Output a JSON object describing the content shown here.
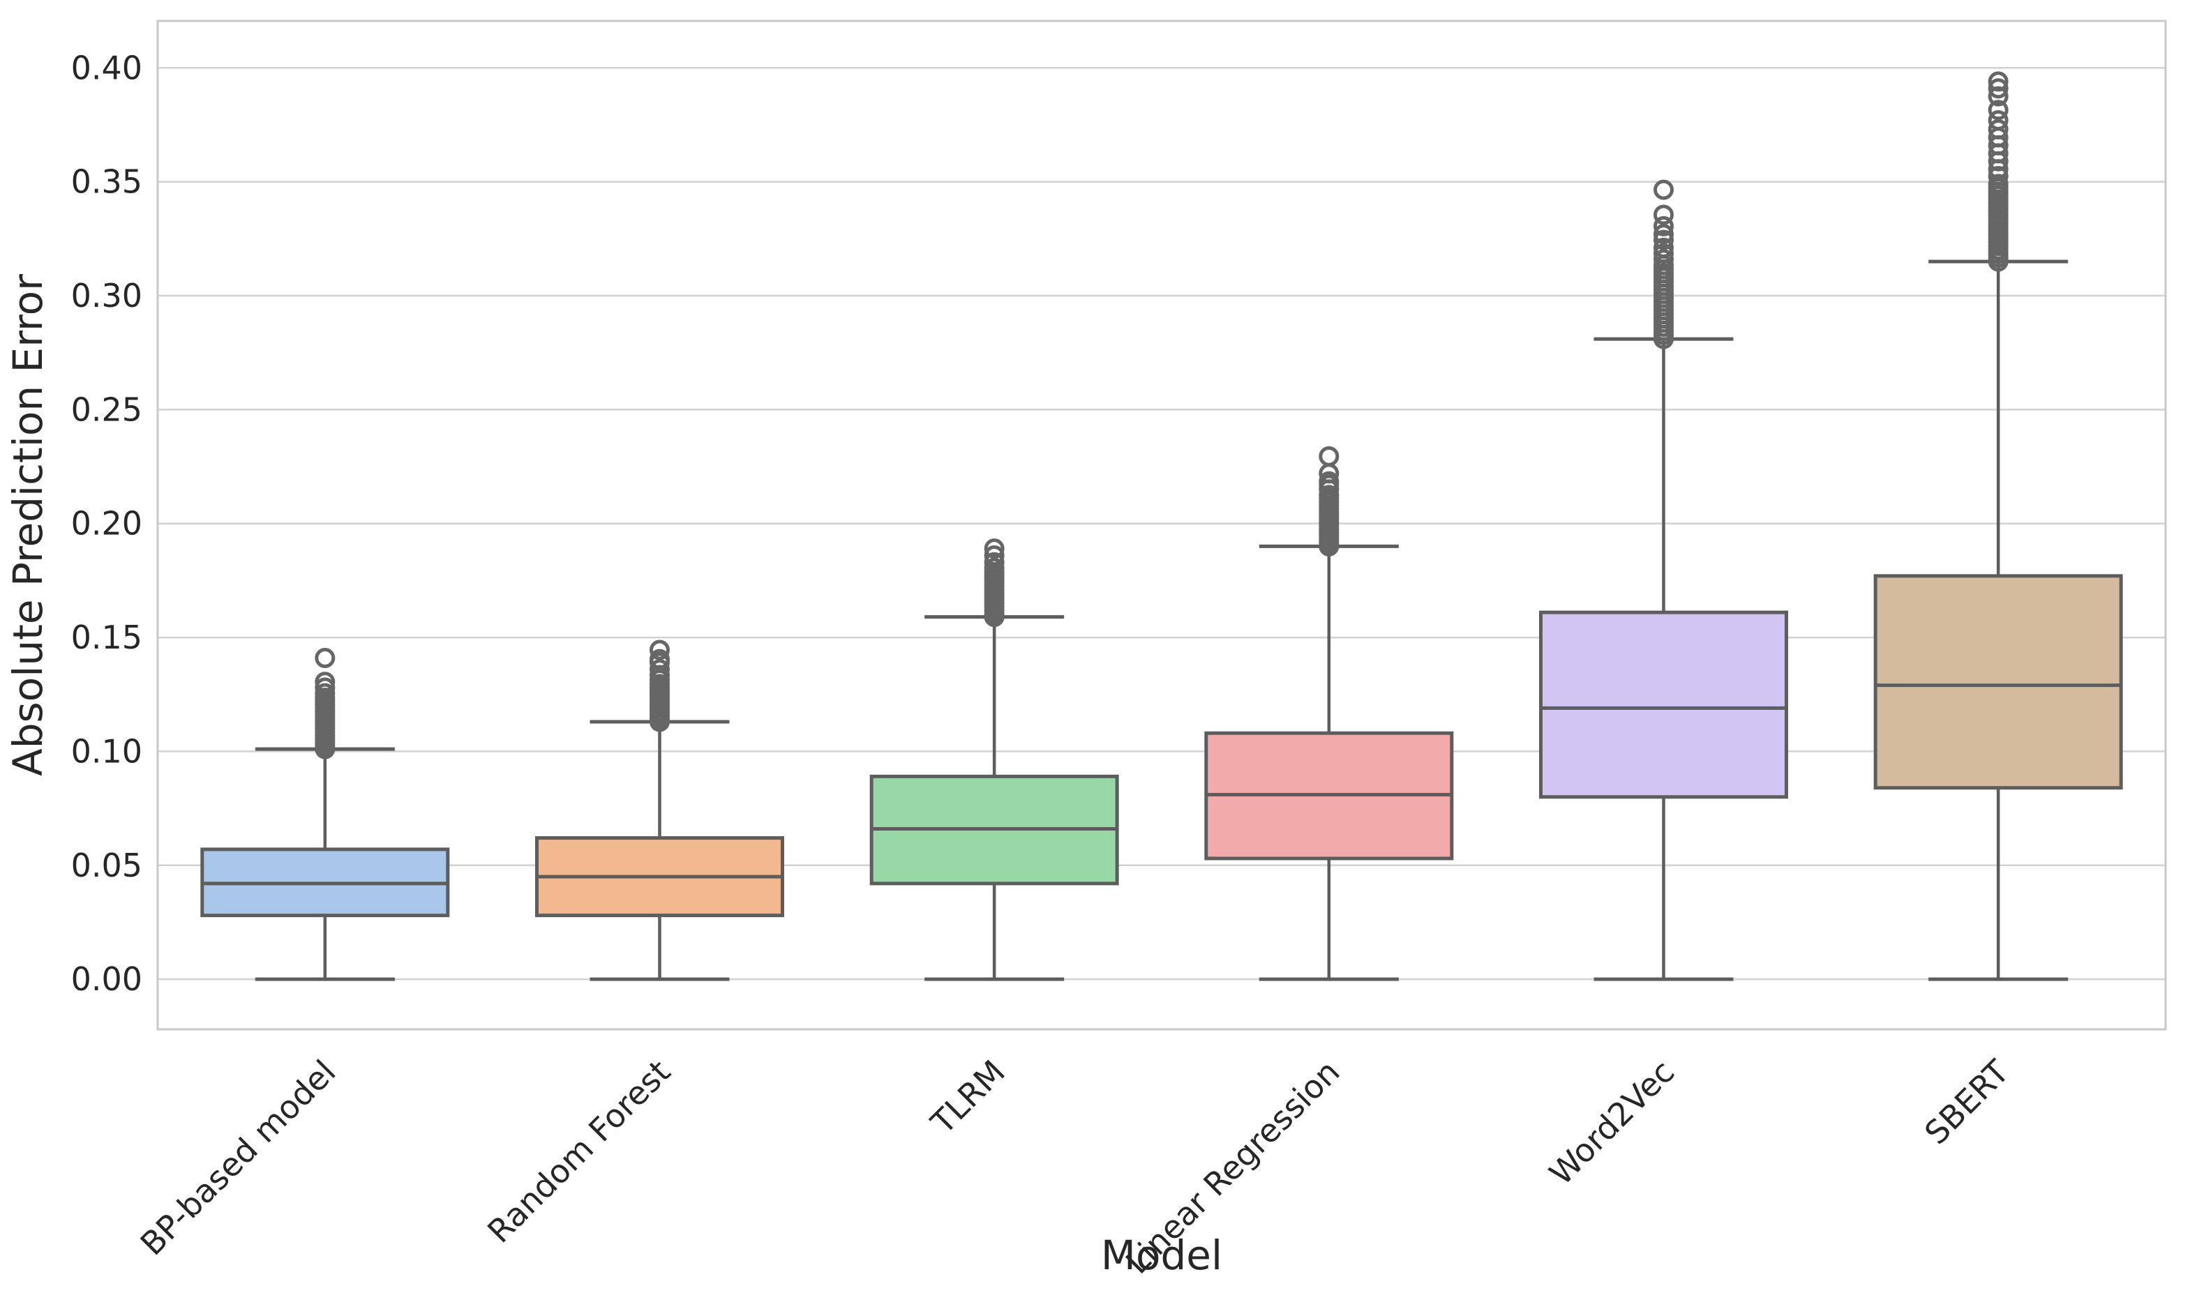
{
  "style": {
    "background": "#ffffff",
    "grid_color": "#d2d2d2",
    "spine_color": "#c8c8c8",
    "box_edge_color": "#5d5d5d",
    "flier_edge_color": "#666666",
    "text_color": "#262626"
  },
  "chart_data": {
    "type": "box",
    "title": "",
    "xlabel": "Model",
    "ylabel": "Absolute Prediction Error",
    "grid": true,
    "legend_position": "none",
    "ylim": [
      -0.022,
      0.4206
    ],
    "yticks": [
      0.0,
      0.05,
      0.1,
      0.15,
      0.2,
      0.25,
      0.3,
      0.35,
      0.4
    ],
    "ytick_labels": [
      "0.00",
      "0.05",
      "0.10",
      "0.15",
      "0.20",
      "0.25",
      "0.30",
      "0.35",
      "0.40"
    ],
    "categories": [
      "BP-based model",
      "Random Forest",
      "TLRM",
      "Linear Regression",
      "Word2Vec",
      "SBERT"
    ],
    "series": [
      {
        "label": "BP-based model",
        "color": "#a9c8e9",
        "q1": 0.028,
        "median": 0.042,
        "q3": 0.057,
        "whisker_low": 0.0,
        "whisker_high": 0.101,
        "outliers": [
          0.101,
          0.1025,
          0.104,
          0.1055,
          0.107,
          0.1085,
          0.11,
          0.1115,
          0.113,
          0.1145,
          0.116,
          0.1175,
          0.119,
          0.1205,
          0.122,
          0.1235,
          0.1255,
          0.128,
          0.1305,
          0.141
        ]
      },
      {
        "label": "Random Forest",
        "color": "#f2b88f",
        "q1": 0.028,
        "median": 0.045,
        "q3": 0.062,
        "whisker_low": 0.0,
        "whisker_high": 0.113,
        "outliers": [
          0.113,
          0.1145,
          0.116,
          0.1175,
          0.119,
          0.1205,
          0.122,
          0.1235,
          0.125,
          0.1265,
          0.128,
          0.1295,
          0.1315,
          0.1335,
          0.136,
          0.139,
          0.1405,
          0.1445
        ]
      },
      {
        "label": "TLRM",
        "color": "#98d8a6",
        "q1": 0.042,
        "median": 0.066,
        "q3": 0.089,
        "whisker_low": 0.0,
        "whisker_high": 0.159,
        "outliers": [
          0.159,
          0.1605,
          0.162,
          0.1635,
          0.165,
          0.1665,
          0.168,
          0.1695,
          0.171,
          0.1725,
          0.174,
          0.1755,
          0.177,
          0.1785,
          0.1805,
          0.183,
          0.186,
          0.189
        ]
      },
      {
        "label": "Linear Regression",
        "color": "#f2abaa",
        "q1": 0.053,
        "median": 0.081,
        "q3": 0.108,
        "whisker_low": 0.0,
        "whisker_high": 0.19,
        "outliers": [
          0.19,
          0.1915,
          0.193,
          0.1945,
          0.196,
          0.1975,
          0.199,
          0.2005,
          0.202,
          0.2035,
          0.205,
          0.2065,
          0.208,
          0.2095,
          0.211,
          0.2125,
          0.215,
          0.217,
          0.2185,
          0.222,
          0.2295
        ]
      },
      {
        "label": "Word2Vec",
        "color": "#d2c5f3",
        "q1": 0.08,
        "median": 0.119,
        "q3": 0.161,
        "whisker_low": 0.0,
        "whisker_high": 0.281,
        "outliers": [
          0.281,
          0.2828,
          0.2846,
          0.2864,
          0.2882,
          0.29,
          0.2918,
          0.2936,
          0.2954,
          0.2972,
          0.299,
          0.3008,
          0.3026,
          0.3044,
          0.3062,
          0.308,
          0.3098,
          0.3116,
          0.3134,
          0.316,
          0.3185,
          0.321,
          0.3245,
          0.327,
          0.3305,
          0.3355,
          0.3465
        ]
      },
      {
        "label": "SBERT",
        "color": "#d4bb9e",
        "q1": 0.084,
        "median": 0.129,
        "q3": 0.177,
        "whisker_low": 0.0,
        "whisker_high": 0.315,
        "outliers": [
          0.315,
          0.3167,
          0.3184,
          0.3201,
          0.3218,
          0.3235,
          0.3252,
          0.3269,
          0.3286,
          0.3303,
          0.332,
          0.3337,
          0.3354,
          0.3371,
          0.3388,
          0.3405,
          0.3422,
          0.3439,
          0.3456,
          0.3473,
          0.349,
          0.3525,
          0.3555,
          0.359,
          0.3625,
          0.366,
          0.3695,
          0.373,
          0.377,
          0.3815,
          0.3875,
          0.391,
          0.394
        ]
      }
    ]
  }
}
